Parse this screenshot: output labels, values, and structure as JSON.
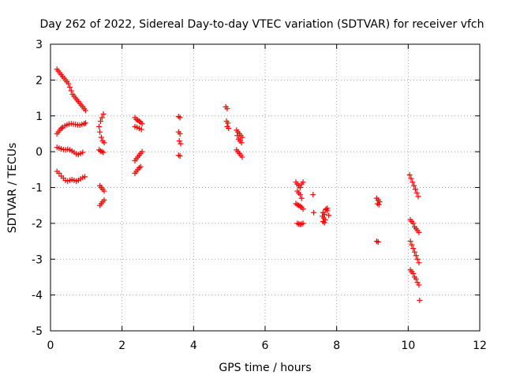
{
  "chart_data": {
    "type": "scatter",
    "title": "Day 262 of 2022, Sidereal Day-to-day VTEC variation (SDTVAR) for receiver vfch",
    "xlabel": "GPS time / hours",
    "ylabel": "SDTVAR / TECUs",
    "xlim": [
      0,
      12
    ],
    "ylim": [
      -5,
      3
    ],
    "xticks": [
      "0",
      "2",
      "4",
      "6",
      "8",
      "10",
      "12"
    ],
    "yticks": [
      "3",
      "2",
      "1",
      "0",
      "-1",
      "-2",
      "-3",
      "-4",
      "-5"
    ],
    "grid": true,
    "marker": "plus",
    "color": "#ff0000",
    "points": [
      [
        0.18,
        2.3
      ],
      [
        0.22,
        2.25
      ],
      [
        0.26,
        2.2
      ],
      [
        0.3,
        2.15
      ],
      [
        0.34,
        2.1
      ],
      [
        0.38,
        2.05
      ],
      [
        0.42,
        2.0
      ],
      [
        0.46,
        1.95
      ],
      [
        0.5,
        1.9
      ],
      [
        0.54,
        1.8
      ],
      [
        0.58,
        1.7
      ],
      [
        0.62,
        1.6
      ],
      [
        0.66,
        1.55
      ],
      [
        0.7,
        1.5
      ],
      [
        0.74,
        1.45
      ],
      [
        0.78,
        1.4
      ],
      [
        0.82,
        1.35
      ],
      [
        0.86,
        1.3
      ],
      [
        0.9,
        1.25
      ],
      [
        0.94,
        1.2
      ],
      [
        0.98,
        1.15
      ],
      [
        0.18,
        0.5
      ],
      [
        0.22,
        0.55
      ],
      [
        0.26,
        0.6
      ],
      [
        0.3,
        0.65
      ],
      [
        0.34,
        0.68
      ],
      [
        0.4,
        0.72
      ],
      [
        0.46,
        0.75
      ],
      [
        0.52,
        0.77
      ],
      [
        0.58,
        0.78
      ],
      [
        0.64,
        0.77
      ],
      [
        0.7,
        0.76
      ],
      [
        0.76,
        0.75
      ],
      [
        0.82,
        0.74
      ],
      [
        0.88,
        0.76
      ],
      [
        0.94,
        0.78
      ],
      [
        0.98,
        0.8
      ],
      [
        0.18,
        0.12
      ],
      [
        0.24,
        0.1
      ],
      [
        0.3,
        0.08
      ],
      [
        0.36,
        0.06
      ],
      [
        0.42,
        0.05
      ],
      [
        0.48,
        0.07
      ],
      [
        0.54,
        0.05
      ],
      [
        0.6,
        0.02
      ],
      [
        0.66,
        -0.02
      ],
      [
        0.72,
        -0.06
      ],
      [
        0.78,
        -0.08
      ],
      [
        0.84,
        -0.05
      ],
      [
        0.9,
        -0.02
      ],
      [
        0.18,
        -0.55
      ],
      [
        0.24,
        -0.6
      ],
      [
        0.3,
        -0.68
      ],
      [
        0.36,
        -0.74
      ],
      [
        0.42,
        -0.8
      ],
      [
        0.48,
        -0.82
      ],
      [
        0.54,
        -0.8
      ],
      [
        0.6,
        -0.78
      ],
      [
        0.66,
        -0.8
      ],
      [
        0.72,
        -0.82
      ],
      [
        0.78,
        -0.8
      ],
      [
        0.84,
        -0.76
      ],
      [
        0.9,
        -0.72
      ],
      [
        0.96,
        -0.7
      ],
      [
        1.36,
        0.7
      ],
      [
        1.4,
        0.85
      ],
      [
        1.44,
        0.95
      ],
      [
        1.48,
        1.05
      ],
      [
        1.38,
        0.55
      ],
      [
        1.42,
        0.4
      ],
      [
        1.46,
        0.3
      ],
      [
        1.5,
        0.25
      ],
      [
        1.36,
        0.05
      ],
      [
        1.4,
        0.02
      ],
      [
        1.44,
        0.0
      ],
      [
        1.48,
        -0.02
      ],
      [
        1.38,
        -0.95
      ],
      [
        1.42,
        -1.0
      ],
      [
        1.46,
        -1.05
      ],
      [
        1.5,
        -1.1
      ],
      [
        1.38,
        -1.5
      ],
      [
        1.42,
        -1.45
      ],
      [
        1.46,
        -1.4
      ],
      [
        1.5,
        -1.35
      ],
      [
        2.36,
        0.95
      ],
      [
        2.4,
        0.9
      ],
      [
        2.44,
        0.88
      ],
      [
        2.48,
        0.85
      ],
      [
        2.52,
        0.82
      ],
      [
        2.56,
        0.78
      ],
      [
        2.36,
        0.7
      ],
      [
        2.42,
        0.68
      ],
      [
        2.48,
        0.65
      ],
      [
        2.54,
        0.62
      ],
      [
        2.36,
        -0.25
      ],
      [
        2.4,
        -0.2
      ],
      [
        2.44,
        -0.15
      ],
      [
        2.48,
        -0.1
      ],
      [
        2.52,
        -0.05
      ],
      [
        2.56,
        0.0
      ],
      [
        2.36,
        -0.6
      ],
      [
        2.4,
        -0.55
      ],
      [
        2.44,
        -0.5
      ],
      [
        2.48,
        -0.45
      ],
      [
        2.52,
        -0.42
      ],
      [
        3.58,
        0.98
      ],
      [
        3.62,
        0.95
      ],
      [
        3.58,
        0.55
      ],
      [
        3.62,
        0.5
      ],
      [
        3.6,
        0.3
      ],
      [
        3.64,
        0.22
      ],
      [
        3.58,
        -0.1
      ],
      [
        3.62,
        -0.12
      ],
      [
        4.9,
        1.25
      ],
      [
        4.94,
        1.2
      ],
      [
        4.92,
        0.85
      ],
      [
        4.96,
        0.8
      ],
      [
        4.94,
        0.7
      ],
      [
        4.98,
        0.65
      ],
      [
        5.2,
        0.6
      ],
      [
        5.24,
        0.55
      ],
      [
        5.28,
        0.5
      ],
      [
        5.32,
        0.45
      ],
      [
        5.36,
        0.4
      ],
      [
        5.22,
        0.45
      ],
      [
        5.26,
        0.35
      ],
      [
        5.3,
        0.3
      ],
      [
        5.34,
        0.25
      ],
      [
        5.2,
        0.05
      ],
      [
        5.24,
        0.0
      ],
      [
        5.28,
        -0.05
      ],
      [
        5.32,
        -0.1
      ],
      [
        5.36,
        -0.15
      ],
      [
        6.86,
        -0.85
      ],
      [
        6.9,
        -0.9
      ],
      [
        6.94,
        -0.95
      ],
      [
        6.98,
        -1.0
      ],
      [
        7.02,
        -0.9
      ],
      [
        7.06,
        -0.85
      ],
      [
        6.9,
        -1.1
      ],
      [
        6.94,
        -1.15
      ],
      [
        6.98,
        -1.2
      ],
      [
        7.02,
        -1.3
      ],
      [
        6.86,
        -1.45
      ],
      [
        6.9,
        -1.48
      ],
      [
        6.94,
        -1.5
      ],
      [
        6.98,
        -1.52
      ],
      [
        7.02,
        -1.55
      ],
      [
        7.06,
        -1.6
      ],
      [
        6.9,
        -2.0
      ],
      [
        6.94,
        -2.02
      ],
      [
        6.98,
        -2.03
      ],
      [
        7.02,
        -2.02
      ],
      [
        7.06,
        -2.0
      ],
      [
        7.34,
        -1.2
      ],
      [
        7.36,
        -1.7
      ],
      [
        7.6,
        -1.8
      ],
      [
        7.64,
        -1.85
      ],
      [
        7.68,
        -1.9
      ],
      [
        7.62,
        -1.7
      ],
      [
        7.66,
        -1.75
      ],
      [
        7.7,
        -1.6
      ],
      [
        7.74,
        -1.65
      ],
      [
        7.78,
        -1.78
      ],
      [
        7.62,
        -1.95
      ],
      [
        7.66,
        -1.98
      ],
      [
        7.7,
        -1.62
      ],
      [
        7.74,
        -1.58
      ],
      [
        9.12,
        -1.3
      ],
      [
        9.16,
        -1.35
      ],
      [
        9.2,
        -1.4
      ],
      [
        9.14,
        -1.45
      ],
      [
        9.18,
        -1.48
      ],
      [
        9.12,
        -2.5
      ],
      [
        9.16,
        -2.52
      ],
      [
        10.04,
        -0.65
      ],
      [
        10.08,
        -0.75
      ],
      [
        10.12,
        -0.85
      ],
      [
        10.16,
        -0.95
      ],
      [
        10.2,
        -1.05
      ],
      [
        10.24,
        -1.15
      ],
      [
        10.28,
        -1.25
      ],
      [
        10.06,
        -1.9
      ],
      [
        10.1,
        -1.95
      ],
      [
        10.14,
        -2.0
      ],
      [
        10.18,
        -2.1
      ],
      [
        10.22,
        -2.15
      ],
      [
        10.26,
        -2.2
      ],
      [
        10.3,
        -2.25
      ],
      [
        10.06,
        -2.5
      ],
      [
        10.1,
        -2.6
      ],
      [
        10.14,
        -2.7
      ],
      [
        10.18,
        -2.8
      ],
      [
        10.22,
        -2.9
      ],
      [
        10.26,
        -3.0
      ],
      [
        10.3,
        -3.1
      ],
      [
        10.06,
        -3.3
      ],
      [
        10.1,
        -3.35
      ],
      [
        10.14,
        -3.4
      ],
      [
        10.18,
        -3.5
      ],
      [
        10.22,
        -3.55
      ],
      [
        10.26,
        -3.65
      ],
      [
        10.3,
        -3.72
      ],
      [
        10.32,
        -4.15
      ]
    ]
  }
}
